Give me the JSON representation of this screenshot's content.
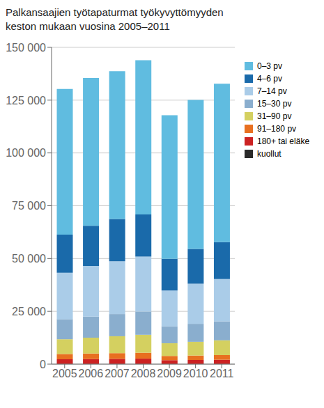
{
  "chart_data": {
    "type": "bar",
    "title": "Palkansaajien työtapaturmat työkyvyttömyyden\nkeston mukaan vuosina 2005–2011",
    "categories": [
      "2005",
      "2006",
      "2007",
      "2008",
      "2009",
      "2010",
      "2011"
    ],
    "series": [
      {
        "name": "kuollut",
        "color": "#2a2a2a",
        "values": [
          100,
          100,
          100,
          100,
          80,
          80,
          80
        ]
      },
      {
        "name": "180+ tai eläke",
        "color": "#cc2222",
        "values": [
          2200,
          2300,
          2400,
          2500,
          1800,
          1900,
          2000
        ]
      },
      {
        "name": "91–180 pv",
        "color": "#e87020",
        "values": [
          2500,
          2600,
          2700,
          2800,
          2000,
          2100,
          2200
        ]
      },
      {
        "name": "31–90 pv",
        "color": "#d4d060",
        "values": [
          7000,
          7500,
          8000,
          8500,
          6000,
          6500,
          7000
        ]
      },
      {
        "name": "15–30 pv",
        "color": "#8aaece",
        "values": [
          9500,
          10000,
          10500,
          11000,
          8000,
          8500,
          9000
        ]
      },
      {
        "name": "7–14 pv",
        "color": "#aacce8",
        "values": [
          22000,
          24000,
          25000,
          26000,
          17000,
          19000,
          20000
        ]
      },
      {
        "name": "4–6 pv",
        "color": "#1a6aaa",
        "values": [
          18000,
          19000,
          20000,
          20000,
          15000,
          16500,
          17500
        ]
      },
      {
        "name": "0–3 pv",
        "color": "#60bce0",
        "values": [
          69000,
          70000,
          70000,
          73000,
          68000,
          70500,
          75000
        ]
      }
    ],
    "stacked": true,
    "ylim": [
      0,
      150000
    ],
    "yticks": [
      0,
      {
        "value": 25000,
        "label": "25 000"
      },
      {
        "value": 50000,
        "label": "50 000"
      },
      {
        "value": 75000,
        "label": "75 000"
      },
      {
        "value": 100000,
        "label": "100 000"
      },
      {
        "value": 125000,
        "label": "125 000"
      },
      {
        "value": 150000,
        "label": "150 000"
      }
    ],
    "grid": true,
    "legend": "right"
  }
}
